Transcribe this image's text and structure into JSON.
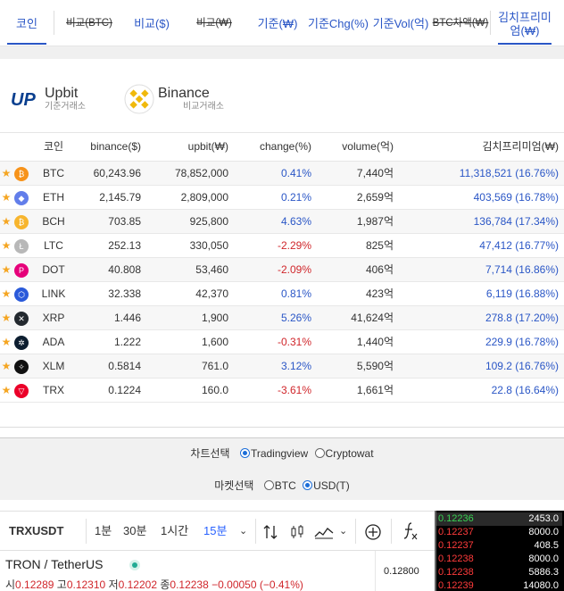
{
  "nav": {
    "items": [
      {
        "label": "코인",
        "active": true
      },
      {
        "label": "비교(BTC)",
        "strike": true
      },
      {
        "label": "비교($)"
      },
      {
        "label": "비교(₩)",
        "strike": true
      },
      {
        "label": "기준(₩)"
      },
      {
        "label": "기준Chg(%)"
      },
      {
        "label": "기준Vol(억)"
      },
      {
        "label": "BTC차액(₩)",
        "strike": true
      },
      {
        "label": "김치프리미엄(₩)"
      }
    ]
  },
  "exchanges": {
    "base": {
      "logo_text": "UP",
      "name": "Upbit",
      "sub": "기준거래소"
    },
    "compare": {
      "name": "Binance",
      "sub": "비교거래소"
    }
  },
  "table": {
    "headers": {
      "coin": "코인",
      "binance": "binance($)",
      "upbit": "upbit(₩)",
      "change": "change(%)",
      "volume": "volume(억)",
      "kimchi": "김치프리미엄(₩)"
    },
    "rows": [
      {
        "coin": "BTC",
        "icon": "btc-icon",
        "icon_color": "#f7931a",
        "glyph": "₿",
        "binance": "60,243.96",
        "upbit": "78,852,000",
        "change": "0.41%",
        "dir": "pos",
        "volume": "7,440억",
        "kimchi": "11,318,521 (16.76%)"
      },
      {
        "coin": "ETH",
        "icon": "eth-icon",
        "icon_color": "#627eea",
        "glyph": "◆",
        "binance": "2,145.79",
        "upbit": "2,809,000",
        "change": "0.21%",
        "dir": "pos",
        "volume": "2,659억",
        "kimchi": "403,569 (16.78%)"
      },
      {
        "coin": "BCH",
        "icon": "bch-icon",
        "icon_color": "#f7b52e",
        "glyph": "₿",
        "binance": "703.85",
        "upbit": "925,800",
        "change": "4.63%",
        "dir": "pos",
        "volume": "1,987억",
        "kimchi": "136,784 (17.34%)"
      },
      {
        "coin": "LTC",
        "icon": "ltc-icon",
        "icon_color": "#b8b8b8",
        "glyph": "Ł",
        "binance": "252.13",
        "upbit": "330,050",
        "change": "-2.29%",
        "dir": "neg",
        "volume": "825억",
        "kimchi": "47,412 (16.77%)"
      },
      {
        "coin": "DOT",
        "icon": "dot-icon",
        "icon_color": "#e6007a",
        "glyph": "P",
        "binance": "40.808",
        "upbit": "53,460",
        "change": "-2.09%",
        "dir": "neg",
        "volume": "406억",
        "kimchi": "7,714 (16.86%)"
      },
      {
        "coin": "LINK",
        "icon": "link-icon",
        "icon_color": "#2a5ada",
        "glyph": "⬡",
        "binance": "32.338",
        "upbit": "42,370",
        "change": "0.81%",
        "dir": "pos",
        "volume": "423억",
        "kimchi": "6,119 (16.88%)"
      },
      {
        "coin": "XRP",
        "icon": "xrp-icon",
        "icon_color": "#23292f",
        "glyph": "✕",
        "binance": "1.446",
        "upbit": "1,900",
        "change": "5.26%",
        "dir": "pos",
        "volume": "41,624억",
        "kimchi": "278.8 (17.20%)"
      },
      {
        "coin": "ADA",
        "icon": "ada-icon",
        "icon_color": "#0d1e30",
        "glyph": "✲",
        "binance": "1.222",
        "upbit": "1,600",
        "change": "-0.31%",
        "dir": "neg",
        "volume": "1,440억",
        "kimchi": "229.9 (16.78%)"
      },
      {
        "coin": "XLM",
        "icon": "xlm-icon",
        "icon_color": "#111111",
        "glyph": "✧",
        "binance": "0.5814",
        "upbit": "761.0",
        "change": "3.12%",
        "dir": "pos",
        "volume": "5,590억",
        "kimchi": "109.2 (16.76%)"
      },
      {
        "coin": "TRX",
        "icon": "trx-icon",
        "icon_color": "#eb0029",
        "glyph": "▽",
        "binance": "0.1224",
        "upbit": "160.0",
        "change": "-3.61%",
        "dir": "neg",
        "volume": "1,661억",
        "kimchi": "22.8 (16.64%)"
      }
    ]
  },
  "chart_select": {
    "label": "차트선택",
    "options": [
      {
        "label": "Tradingview",
        "checked": true
      },
      {
        "label": "Cryptowat",
        "checked": false
      }
    ]
  },
  "market_select": {
    "label": "마켓선택",
    "options": [
      {
        "label": "BTC",
        "checked": false
      },
      {
        "label": "USD(T)",
        "checked": true
      }
    ]
  },
  "tradingview": {
    "symbol": "TRXUSDT",
    "intervals": [
      "1분",
      "30분",
      "1시간",
      "15분"
    ],
    "pair_title": "TRON / TetherUS",
    "ohlc": {
      "o_label": "시",
      "o": "0.12289",
      "h_label": "고",
      "h": "0.12310",
      "l_label": "저",
      "l": "0.12202",
      "c_label": "종",
      "c": "0.12238",
      "chg": "−0.00050 (−0.41%)"
    },
    "price_label": "0.12800"
  },
  "orderbook": [
    {
      "price": "0.12236",
      "qty": "2453.0",
      "side": "buy"
    },
    {
      "price": "0.12237",
      "qty": "8000.0",
      "side": "sell"
    },
    {
      "price": "0.12237",
      "qty": "408.5",
      "side": "sell"
    },
    {
      "price": "0.12238",
      "qty": "8000.0",
      "side": "sell"
    },
    {
      "price": "0.12238",
      "qty": "5886.3",
      "side": "sell"
    },
    {
      "price": "0.12239",
      "qty": "14080.0",
      "side": "sell"
    }
  ]
}
